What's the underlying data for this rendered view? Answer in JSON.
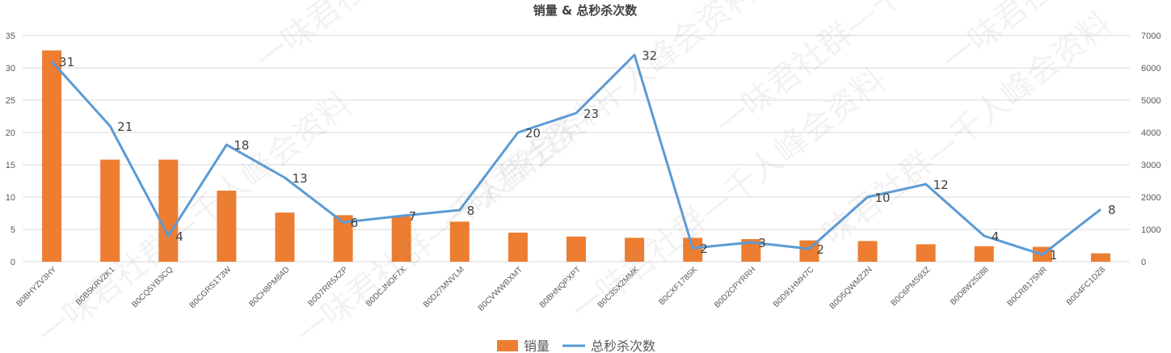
{
  "chart_data": {
    "type": "bar",
    "title": "销量 & 总秒杀次数",
    "categories": [
      "B0BHYZV3HY",
      "B0B5KRV2K1",
      "B0CQ5YB3CQ",
      "B0CGRS1T3W",
      "B0CH8PM64D",
      "B0D7RR5XZP",
      "B0DCJNOF7X",
      "B0D27MNVLM",
      "B0CVWWBXMT",
      "B0BHNQPXPT",
      "B0C3SX2MMK",
      "B0CXF178SK",
      "B0D2CPYRRH",
      "B0D91HMH7C",
      "B0D5QWMZ2N",
      "B0C6PMS93Z",
      "B0D8W25288",
      "B0CRB175NR",
      "B0D4FC1DZ8"
    ],
    "series": [
      {
        "name": "销量",
        "chart": "bar",
        "axis": "left",
        "color": "#ED7D31",
        "values": [
          32.7,
          15.8,
          15.8,
          11.0,
          7.6,
          7.2,
          7.0,
          6.2,
          4.5,
          3.9,
          3.7,
          3.7,
          3.5,
          3.3,
          3.2,
          2.7,
          2.4,
          2.3,
          1.3
        ]
      },
      {
        "name": "总秒杀次数",
        "chart": "line",
        "axis": "right",
        "color": "#5B9BD5",
        "values": [
          6200,
          4200,
          800,
          3620,
          2600,
          1220,
          1420,
          1600,
          4000,
          4600,
          6400,
          420,
          600,
          400,
          2000,
          2400,
          800,
          220,
          1620
        ],
        "data_labels": [
          "31",
          "21",
          "4",
          "18",
          "13",
          "6",
          "7",
          "8",
          "20",
          "23",
          "32",
          "2",
          "3",
          "2",
          "10",
          "12",
          "4",
          "1",
          "8"
        ]
      }
    ],
    "y_left": {
      "ylim": [
        0,
        35
      ],
      "ticks": [
        "0",
        "5",
        "10",
        "15",
        "20",
        "25",
        "30",
        "35"
      ]
    },
    "y_right": {
      "ylim": [
        0,
        7000
      ],
      "ticks": [
        "0",
        "1000",
        "2000",
        "3000",
        "4000",
        "5000",
        "6000",
        "7000"
      ]
    },
    "grid": true,
    "legend_position": "bottom"
  },
  "watermark": {
    "text": "一味君社群—千人峰会资料"
  }
}
